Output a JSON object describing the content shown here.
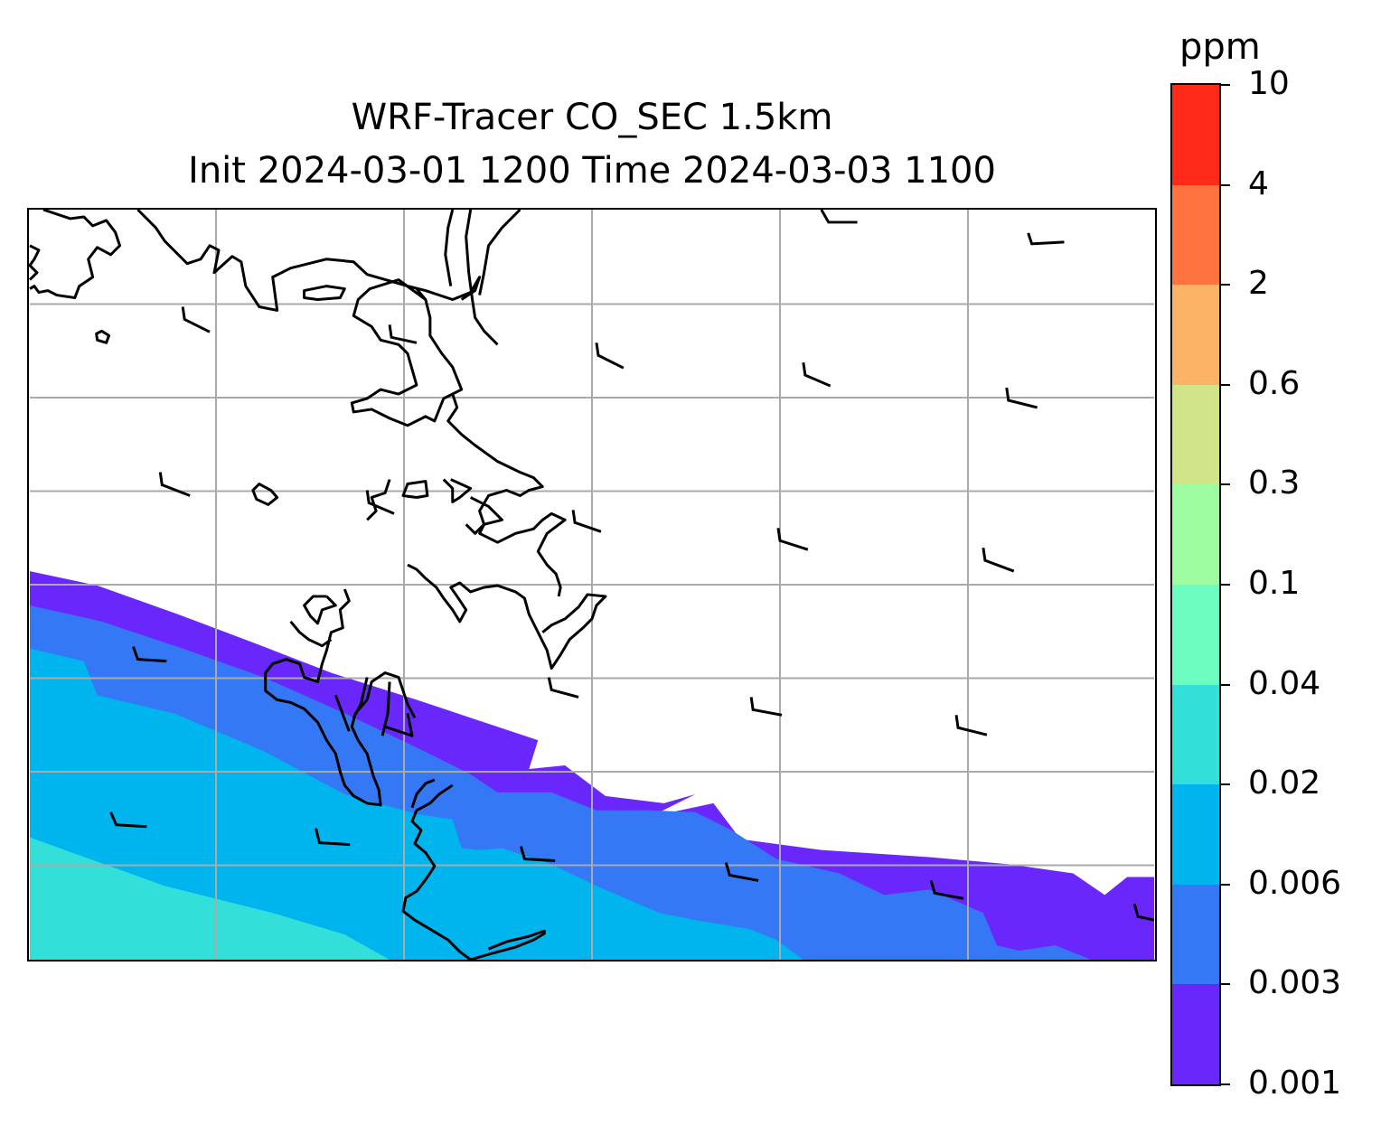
{
  "title": {
    "line1": "WRF-Tracer CO_SEC 1.5km",
    "line2": "Init 2024-03-01 1200 Time 2024-03-03 1100"
  },
  "colorbar": {
    "unit": "ppm",
    "levels": [
      "0.001",
      "0.003",
      "0.006",
      "0.02",
      "0.04",
      "0.1",
      "0.3",
      "0.6",
      "2",
      "4",
      "10"
    ],
    "colors": [
      "#6a27fc",
      "#3578f5",
      "#00b5ed",
      "#33e0d9",
      "#6bfec0",
      "#9dfda0",
      "#d0e488",
      "#fdb366",
      "#fe7340",
      "#ff2a19"
    ]
  },
  "map": {
    "gridlines": true,
    "gridline_color": "#aaaaaa",
    "coastline_color": "#000000",
    "field_colors": {
      "c0001": "#6a27fc",
      "c0003": "#3578f5",
      "c0006": "#00b5ed",
      "c002": "#33e0d9"
    },
    "wind_barbs": true
  }
}
